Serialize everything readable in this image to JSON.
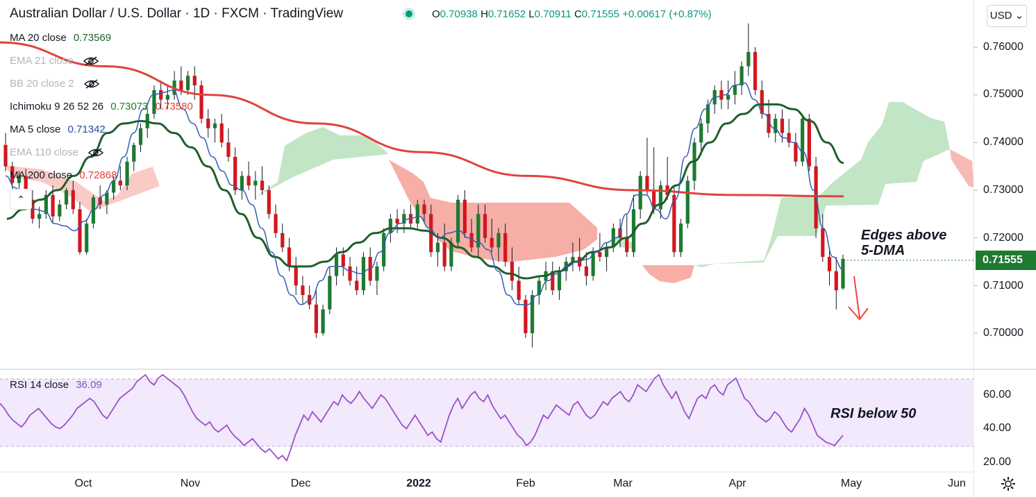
{
  "header": {
    "title": "Australian Dollar / U.S. Dollar · 1D · FXCM · TradingView",
    "ohlc": {
      "o_label": "O",
      "o": "0.70938",
      "h_label": "H",
      "h": "0.71652",
      "l_label": "L",
      "l": "0.70911",
      "c_label": "C",
      "c": "0.71555",
      "change": "+0.00617 (+0.87%)"
    },
    "currency_button": "USD"
  },
  "indicators": [
    {
      "label": "MA 20 close",
      "value": "0.73569",
      "value_color": "#1e5e2a",
      "hidden": false
    },
    {
      "label": "EMA 21 close",
      "value": "",
      "hidden": true
    },
    {
      "label": "BB 20 close 2",
      "value": "",
      "hidden": true
    },
    {
      "label": "Ichimoku 9 26 52 26",
      "value": "0.73073",
      "value2": "0.73580",
      "value_color": "#1e7a31",
      "value2_color": "#e0433a",
      "hidden": false
    },
    {
      "label": "MA 5 close",
      "value": "0.71342",
      "value_color": "#1f4e9c",
      "hidden": false
    },
    {
      "label": "EMA 110 close",
      "value": "",
      "hidden": true
    },
    {
      "label": "MA 200 close",
      "value": "0.72868",
      "value_color": "#e0433a",
      "hidden": false
    }
  ],
  "price_axis": {
    "ticks": [
      "0.76000",
      "0.75000",
      "0.74000",
      "0.73000",
      "0.72000",
      "0.71000",
      "0.70000"
    ],
    "tick_values": [
      0.76,
      0.75,
      0.74,
      0.73,
      0.72,
      0.71,
      0.7
    ],
    "last_price": "0.71555",
    "last_price_color": "#1e7a31"
  },
  "rsi": {
    "label": "RSI 14 close",
    "value": "36.09",
    "value_color": "#7e57c2",
    "ticks": [
      "60.00",
      "40.00",
      "20.00"
    ],
    "tick_values": [
      60,
      40,
      20
    ],
    "band": [
      30,
      70
    ],
    "values": [
      55,
      52,
      48,
      45,
      43,
      41,
      44,
      48,
      50,
      52,
      49,
      46,
      43,
      41,
      40,
      42,
      45,
      48,
      52,
      54,
      56,
      58,
      56,
      52,
      48,
      46,
      50,
      54,
      58,
      60,
      62,
      64,
      68,
      70,
      72,
      68,
      66,
      70,
      72,
      70,
      68,
      66,
      64,
      60,
      55,
      50,
      46,
      44,
      42,
      44,
      40,
      38,
      40,
      42,
      38,
      35,
      33,
      30,
      32,
      34,
      31,
      28,
      26,
      28,
      25,
      22,
      24,
      21,
      28,
      36,
      42,
      48,
      45,
      50,
      47,
      44,
      48,
      52,
      56,
      54,
      60,
      57,
      55,
      58,
      62,
      58,
      55,
      52,
      56,
      60,
      58,
      54,
      50,
      46,
      42,
      40,
      44,
      48,
      44,
      40,
      36,
      38,
      34,
      32,
      40,
      48,
      54,
      58,
      52,
      56,
      60,
      62,
      58,
      56,
      60,
      54,
      50,
      46,
      48,
      44,
      40,
      36,
      34,
      30,
      32,
      36,
      42,
      48,
      46,
      50,
      54,
      52,
      50,
      48,
      54,
      56,
      52,
      48,
      46,
      48,
      52,
      56,
      54,
      58,
      60,
      62,
      58,
      56,
      60,
      66,
      64,
      62,
      66,
      70,
      72,
      66,
      62,
      58,
      62,
      56,
      50,
      46,
      52,
      58,
      60,
      58,
      64,
      66,
      62,
      60,
      66,
      68,
      70,
      64,
      58,
      56,
      52,
      48,
      46,
      44,
      46,
      50,
      48,
      44,
      40,
      38,
      42,
      46,
      52,
      48,
      42,
      36,
      34,
      32,
      31,
      30,
      33,
      36
    ]
  },
  "x_axis": {
    "labels": [
      "Oct",
      "Nov",
      "Dec",
      "2022",
      "Feb",
      "Mar",
      "Apr",
      "May",
      "Jun"
    ]
  },
  "annotations": {
    "price_note": [
      "Edges above",
      "5-DMA"
    ],
    "rsi_note": "RSI below 50"
  },
  "chart_data": {
    "type": "candlestick",
    "symbol": "AUDUSD",
    "timeframe": "1D",
    "ylim": [
      0.697,
      0.766
    ],
    "ohlc": [
      [
        0.7395,
        0.742,
        0.734,
        0.735
      ],
      [
        0.735,
        0.736,
        0.73,
        0.7315
      ],
      [
        0.7315,
        0.734,
        0.728,
        0.733
      ],
      [
        0.733,
        0.7345,
        0.727,
        0.728
      ],
      [
        0.728,
        0.73,
        0.723,
        0.724
      ],
      [
        0.724,
        0.7265,
        0.722,
        0.725
      ],
      [
        0.725,
        0.73,
        0.724,
        0.729
      ],
      [
        0.729,
        0.731,
        0.723,
        0.7245
      ],
      [
        0.7245,
        0.728,
        0.7235,
        0.727
      ],
      [
        0.727,
        0.7305,
        0.726,
        0.73
      ],
      [
        0.73,
        0.732,
        0.725,
        0.726
      ],
      [
        0.726,
        0.7275,
        0.7165,
        0.717
      ],
      [
        0.717,
        0.724,
        0.7165,
        0.723
      ],
      [
        0.723,
        0.729,
        0.722,
        0.7285
      ],
      [
        0.7285,
        0.731,
        0.726,
        0.727
      ],
      [
        0.727,
        0.73,
        0.725,
        0.7295
      ],
      [
        0.7295,
        0.733,
        0.728,
        0.732
      ],
      [
        0.732,
        0.735,
        0.73,
        0.731
      ],
      [
        0.731,
        0.737,
        0.73,
        0.736
      ],
      [
        0.736,
        0.74,
        0.734,
        0.7395
      ],
      [
        0.7395,
        0.744,
        0.738,
        0.743
      ],
      [
        0.743,
        0.747,
        0.741,
        0.746
      ],
      [
        0.746,
        0.752,
        0.745,
        0.751
      ],
      [
        0.751,
        0.753,
        0.747,
        0.749
      ],
      [
        0.749,
        0.752,
        0.747,
        0.75
      ],
      [
        0.75,
        0.755,
        0.749,
        0.753
      ],
      [
        0.753,
        0.756,
        0.75,
        0.751
      ],
      [
        0.751,
        0.755,
        0.75,
        0.754
      ],
      [
        0.754,
        0.756,
        0.749,
        0.752
      ],
      [
        0.752,
        0.753,
        0.744,
        0.745
      ],
      [
        0.745,
        0.747,
        0.741,
        0.743
      ],
      [
        0.743,
        0.745,
        0.74,
        0.744
      ],
      [
        0.744,
        0.746,
        0.739,
        0.74
      ],
      [
        0.74,
        0.743,
        0.736,
        0.737
      ],
      [
        0.737,
        0.739,
        0.729,
        0.73
      ],
      [
        0.73,
        0.734,
        0.728,
        0.733
      ],
      [
        0.733,
        0.736,
        0.73,
        0.731
      ],
      [
        0.731,
        0.734,
        0.728,
        0.732
      ],
      [
        0.732,
        0.735,
        0.729,
        0.73
      ],
      [
        0.73,
        0.731,
        0.724,
        0.725
      ],
      [
        0.725,
        0.727,
        0.72,
        0.721
      ],
      [
        0.721,
        0.723,
        0.717,
        0.718
      ],
      [
        0.718,
        0.72,
        0.713,
        0.714
      ],
      [
        0.714,
        0.716,
        0.708,
        0.71
      ],
      [
        0.71,
        0.712,
        0.706,
        0.708
      ],
      [
        0.708,
        0.71,
        0.705,
        0.706
      ],
      [
        0.706,
        0.709,
        0.699,
        0.7
      ],
      [
        0.7,
        0.706,
        0.6995,
        0.705
      ],
      [
        0.705,
        0.714,
        0.704,
        0.712
      ],
      [
        0.712,
        0.718,
        0.71,
        0.7165
      ],
      [
        0.7165,
        0.718,
        0.712,
        0.714
      ],
      [
        0.714,
        0.716,
        0.71,
        0.711
      ],
      [
        0.711,
        0.714,
        0.708,
        0.709
      ],
      [
        0.709,
        0.717,
        0.708,
        0.716
      ],
      [
        0.716,
        0.718,
        0.71,
        0.711
      ],
      [
        0.711,
        0.715,
        0.708,
        0.714
      ],
      [
        0.714,
        0.722,
        0.713,
        0.721
      ],
      [
        0.721,
        0.725,
        0.719,
        0.724
      ],
      [
        0.724,
        0.726,
        0.721,
        0.723
      ],
      [
        0.723,
        0.726,
        0.721,
        0.725
      ],
      [
        0.725,
        0.727,
        0.722,
        0.723
      ],
      [
        0.723,
        0.728,
        0.722,
        0.727
      ],
      [
        0.727,
        0.728,
        0.723,
        0.725
      ],
      [
        0.725,
        0.727,
        0.716,
        0.717
      ],
      [
        0.717,
        0.721,
        0.714,
        0.719
      ],
      [
        0.719,
        0.723,
        0.713,
        0.714
      ],
      [
        0.714,
        0.72,
        0.713,
        0.719
      ],
      [
        0.719,
        0.729,
        0.718,
        0.728
      ],
      [
        0.728,
        0.73,
        0.72,
        0.721
      ],
      [
        0.721,
        0.724,
        0.717,
        0.718
      ],
      [
        0.718,
        0.727,
        0.716,
        0.725
      ],
      [
        0.725,
        0.727,
        0.719,
        0.72
      ],
      [
        0.72,
        0.724,
        0.717,
        0.718
      ],
      [
        0.718,
        0.722,
        0.715,
        0.721
      ],
      [
        0.721,
        0.723,
        0.714,
        0.715
      ],
      [
        0.715,
        0.718,
        0.709,
        0.711
      ],
      [
        0.711,
        0.714,
        0.706,
        0.707
      ],
      [
        0.707,
        0.708,
        0.699,
        0.7
      ],
      [
        0.7,
        0.709,
        0.697,
        0.708
      ],
      [
        0.708,
        0.712,
        0.706,
        0.711
      ],
      [
        0.711,
        0.715,
        0.709,
        0.713
      ],
      [
        0.713,
        0.715,
        0.708,
        0.709
      ],
      [
        0.709,
        0.714,
        0.707,
        0.713
      ],
      [
        0.713,
        0.716,
        0.711,
        0.715
      ],
      [
        0.715,
        0.719,
        0.713,
        0.716
      ],
      [
        0.716,
        0.72,
        0.713,
        0.714
      ],
      [
        0.714,
        0.717,
        0.71,
        0.712
      ],
      [
        0.712,
        0.718,
        0.711,
        0.717
      ],
      [
        0.717,
        0.721,
        0.715,
        0.716
      ],
      [
        0.716,
        0.719,
        0.713,
        0.718
      ],
      [
        0.718,
        0.723,
        0.717,
        0.722
      ],
      [
        0.722,
        0.724,
        0.718,
        0.72
      ],
      [
        0.72,
        0.725,
        0.716,
        0.717
      ],
      [
        0.717,
        0.729,
        0.716,
        0.726
      ],
      [
        0.726,
        0.734,
        0.724,
        0.733
      ],
      [
        0.733,
        0.741,
        0.729,
        0.73
      ],
      [
        0.73,
        0.739,
        0.725,
        0.726
      ],
      [
        0.726,
        0.732,
        0.724,
        0.731
      ],
      [
        0.731,
        0.737,
        0.728,
        0.729
      ],
      [
        0.729,
        0.731,
        0.716,
        0.717
      ],
      [
        0.717,
        0.724,
        0.716,
        0.723
      ],
      [
        0.723,
        0.733,
        0.722,
        0.732
      ],
      [
        0.732,
        0.741,
        0.73,
        0.74
      ],
      [
        0.74,
        0.745,
        0.738,
        0.744
      ],
      [
        0.744,
        0.749,
        0.742,
        0.748
      ],
      [
        0.748,
        0.752,
        0.746,
        0.751
      ],
      [
        0.751,
        0.753,
        0.747,
        0.749
      ],
      [
        0.749,
        0.753,
        0.747,
        0.75
      ],
      [
        0.75,
        0.755,
        0.748,
        0.752
      ],
      [
        0.752,
        0.757,
        0.75,
        0.756
      ],
      [
        0.756,
        0.765,
        0.754,
        0.759
      ],
      [
        0.759,
        0.76,
        0.75,
        0.751
      ],
      [
        0.751,
        0.753,
        0.745,
        0.746
      ],
      [
        0.746,
        0.749,
        0.741,
        0.742
      ],
      [
        0.742,
        0.746,
        0.74,
        0.745
      ],
      [
        0.745,
        0.747,
        0.74,
        0.742
      ],
      [
        0.742,
        0.745,
        0.739,
        0.74
      ],
      [
        0.74,
        0.742,
        0.735,
        0.736
      ],
      [
        0.736,
        0.746,
        0.735,
        0.745
      ],
      [
        0.745,
        0.746,
        0.734,
        0.735
      ],
      [
        0.735,
        0.737,
        0.72,
        0.722
      ],
      [
        0.722,
        0.725,
        0.715,
        0.716
      ],
      [
        0.716,
        0.718,
        0.71,
        0.713
      ],
      [
        0.713,
        0.716,
        0.705,
        0.709
      ],
      [
        0.7094,
        0.7165,
        0.7091,
        0.7156
      ]
    ],
    "ma5": [
      0.733,
      0.7305,
      0.7275,
      0.726,
      0.7255,
      0.723,
      0.7225,
      0.7215,
      0.7235,
      0.726,
      0.729,
      0.732,
      0.737,
      0.742,
      0.747,
      0.75,
      0.7505,
      0.751,
      0.747,
      0.744,
      0.741,
      0.737,
      0.734,
      0.731,
      0.73,
      0.727,
      0.722,
      0.717,
      0.712,
      0.708,
      0.706,
      0.707,
      0.711,
      0.714,
      0.714,
      0.713,
      0.7125,
      0.7135,
      0.717,
      0.721,
      0.723,
      0.724,
      0.7245,
      0.722,
      0.72,
      0.721,
      0.7215,
      0.72,
      0.719,
      0.7175,
      0.713,
      0.708,
      0.706,
      0.706,
      0.708,
      0.711,
      0.7125,
      0.714,
      0.715,
      0.7155,
      0.717,
      0.719,
      0.72,
      0.725,
      0.729,
      0.729,
      0.726,
      0.724,
      0.728,
      0.737,
      0.743,
      0.747,
      0.7495,
      0.75,
      0.752,
      0.7525,
      0.749,
      0.746,
      0.743,
      0.741,
      0.74,
      0.738,
      0.73,
      0.722,
      0.716,
      0.7134
    ],
    "ma20": [
      0.724,
      0.726,
      0.728,
      0.73,
      0.733,
      0.737,
      0.742,
      0.744,
      0.7445,
      0.744,
      0.742,
      0.739,
      0.735,
      0.73,
      0.725,
      0.72,
      0.716,
      0.714,
      0.714,
      0.715,
      0.717,
      0.719,
      0.721,
      0.722,
      0.722,
      0.7215,
      0.72,
      0.718,
      0.716,
      0.714,
      0.7125,
      0.7115,
      0.712,
      0.713,
      0.715,
      0.717,
      0.718,
      0.72,
      0.723,
      0.727,
      0.731,
      0.736,
      0.74,
      0.744,
      0.746,
      0.748,
      0.748,
      0.747,
      0.7445,
      0.74,
      0.7357
    ],
    "ma200": [
      0.761,
      0.756,
      0.75,
      0.744,
      0.738,
      0.733,
      0.73,
      0.729,
      0.7287
    ]
  }
}
